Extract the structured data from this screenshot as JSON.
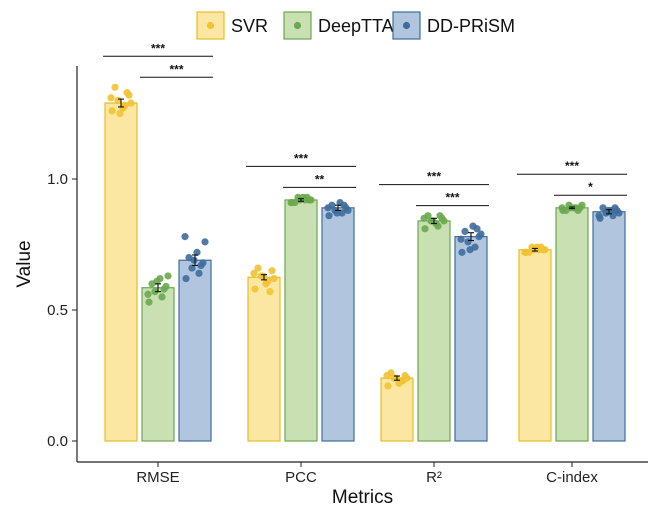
{
  "chart_data": {
    "type": "bar",
    "xlabel": "Metrics",
    "ylabel": "Value",
    "ylim": [
      0,
      1.4
    ],
    "yticks": [
      0.0,
      0.5,
      1.0
    ],
    "ytick_labels": [
      "0.0",
      "0.5",
      "1.0"
    ],
    "grid": false,
    "legend_position": "top",
    "categories": [
      "RMSE",
      "PCC",
      "R²",
      "C-index"
    ],
    "series": [
      {
        "name": "SVR",
        "fill": "#fbe7a1",
        "stroke": "#e6bd24",
        "point_color": "#f1c232",
        "values": [
          1.29,
          0.625,
          0.24,
          0.73
        ],
        "errors": [
          0.015,
          0.01,
          0.008,
          0.005
        ],
        "points": [
          [
            1.26,
            1.28,
            1.3,
            1.32,
            1.35,
            1.27,
            1.29,
            1.31,
            1.33,
            1.25
          ],
          [
            0.58,
            0.61,
            0.63,
            0.65,
            0.66,
            0.6,
            0.62,
            0.64,
            0.57,
            0.63
          ],
          [
            0.21,
            0.23,
            0.24,
            0.25,
            0.26,
            0.22,
            0.24,
            0.25,
            0.23,
            0.24
          ],
          [
            0.72,
            0.73,
            0.74,
            0.73,
            0.72,
            0.74,
            0.73,
            0.72,
            0.74,
            0.73
          ]
        ]
      },
      {
        "name": "DeepTTA",
        "fill": "#c8e0b2",
        "stroke": "#6aa84f",
        "point_color": "#6aa84f",
        "values": [
          0.585,
          0.92,
          0.84,
          0.89
        ],
        "errors": [
          0.015,
          0.005,
          0.01,
          0.003
        ],
        "points": [
          [
            0.53,
            0.55,
            0.57,
            0.59,
            0.6,
            0.62,
            0.63,
            0.56,
            0.58,
            0.61
          ],
          [
            0.91,
            0.92,
            0.93,
            0.92,
            0.91,
            0.93,
            0.92,
            0.91,
            0.93,
            0.92
          ],
          [
            0.81,
            0.82,
            0.84,
            0.85,
            0.86,
            0.83,
            0.84,
            0.85,
            0.86,
            0.84
          ],
          [
            0.88,
            0.89,
            0.9,
            0.89,
            0.88,
            0.89,
            0.9,
            0.89,
            0.88,
            0.89
          ]
        ]
      },
      {
        "name": "DD-PRiSM",
        "fill": "#b1c6de",
        "stroke": "#3e6d9c",
        "point_color": "#3e6d9c",
        "values": [
          0.69,
          0.89,
          0.78,
          0.875
        ],
        "errors": [
          0.02,
          0.01,
          0.015,
          0.008
        ],
        "points": [
          [
            0.62,
            0.64,
            0.66,
            0.68,
            0.7,
            0.72,
            0.76,
            0.78,
            0.67,
            0.69
          ],
          [
            0.86,
            0.87,
            0.88,
            0.89,
            0.9,
            0.91,
            0.88,
            0.89,
            0.9,
            0.87
          ],
          [
            0.72,
            0.74,
            0.76,
            0.78,
            0.8,
            0.82,
            0.79,
            0.77,
            0.81,
            0.73
          ],
          [
            0.85,
            0.86,
            0.87,
            0.88,
            0.89,
            0.88,
            0.87,
            0.86,
            0.89,
            0.88
          ]
        ]
      }
    ],
    "significance": [
      {
        "category": "RMSE",
        "from": "SVR",
        "to": "DD-PRiSM",
        "label": "***"
      },
      {
        "category": "RMSE",
        "from": "DeepTTA",
        "to": "DD-PRiSM",
        "label": "***"
      },
      {
        "category": "PCC",
        "from": "SVR",
        "to": "DD-PRiSM",
        "label": "***"
      },
      {
        "category": "PCC",
        "from": "DeepTTA",
        "to": "DD-PRiSM",
        "label": "**"
      },
      {
        "category": "R²",
        "from": "SVR",
        "to": "DD-PRiSM",
        "label": "***"
      },
      {
        "category": "R²",
        "from": "DeepTTA",
        "to": "DD-PRiSM",
        "label": "***"
      },
      {
        "category": "C-index",
        "from": "SVR",
        "to": "DD-PRiSM",
        "label": "***"
      },
      {
        "category": "C-index",
        "from": "DeepTTA",
        "to": "DD-PRiSM",
        "label": "*"
      }
    ]
  }
}
